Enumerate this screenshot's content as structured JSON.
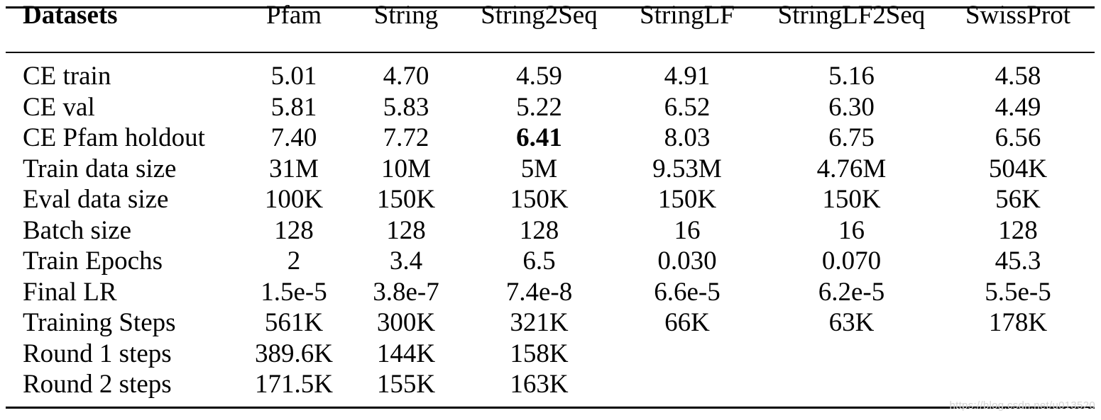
{
  "table": {
    "header_label": "Datasets",
    "columns": [
      "Pfam",
      "String",
      "String2Seq",
      "StringLF",
      "StringLF2Seq",
      "SwissProt"
    ],
    "rows": [
      {
        "label": "CE train",
        "values": [
          "5.01",
          "4.70",
          "4.59",
          "4.91",
          "5.16",
          "4.58"
        ]
      },
      {
        "label": "CE val",
        "values": [
          "5.81",
          "5.83",
          "5.22",
          "6.52",
          "6.30",
          "4.49"
        ]
      },
      {
        "label": "CE Pfam holdout",
        "values": [
          "7.40",
          "7.72",
          "6.41",
          "8.03",
          "6.75",
          "6.56"
        ],
        "bold_index": 2
      },
      {
        "label": "Train data size",
        "values": [
          "31M",
          "10M",
          "5M",
          "9.53M",
          "4.76M",
          "504K"
        ]
      },
      {
        "label": "Eval data size",
        "values": [
          "100K",
          "150K",
          "150K",
          "150K",
          "150K",
          "56K"
        ]
      },
      {
        "label": "Batch size",
        "values": [
          "128",
          "128",
          "128",
          "16",
          "16",
          "128"
        ]
      },
      {
        "label": "Train Epochs",
        "values": [
          "2",
          "3.4",
          "6.5",
          "0.030",
          "0.070",
          "45.3"
        ]
      },
      {
        "label": "Final LR",
        "values": [
          "1.5e-5",
          "3.8e-7",
          "7.4e-8",
          "6.6e-5",
          "6.2e-5",
          "5.5e-5"
        ]
      },
      {
        "label": "Training Steps",
        "values": [
          "561K",
          "300K",
          "321K",
          "66K",
          "63K",
          "178K"
        ]
      },
      {
        "label": "Round 1 steps",
        "values": [
          "389.6K",
          "144K",
          "158K",
          "",
          "",
          ""
        ]
      },
      {
        "label": "Round 2 steps",
        "values": [
          "171.5K",
          "155K",
          "163K",
          "",
          "",
          ""
        ]
      }
    ]
  },
  "watermark": "https://blog.csdn.net/u013520"
}
